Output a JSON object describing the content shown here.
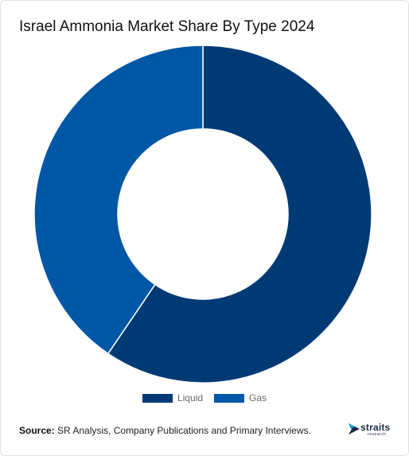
{
  "chart_data": {
    "type": "pie",
    "title": "Israel Ammonia Market Share By Type 2024",
    "categories": [
      "Liquid",
      "Gas"
    ],
    "values": [
      59.5,
      40.5
    ],
    "unit": "%",
    "donut": true,
    "legend_position": "bottom-center",
    "colors": [
      "#003a75",
      "#0057a6"
    ]
  },
  "source": {
    "label": "Source:",
    "text": "SR Analysis, Company Publications and Primary Interviews."
  },
  "brand": {
    "logo_text": "straits",
    "logo_subtext": "research",
    "accent": "#00a5e0"
  }
}
